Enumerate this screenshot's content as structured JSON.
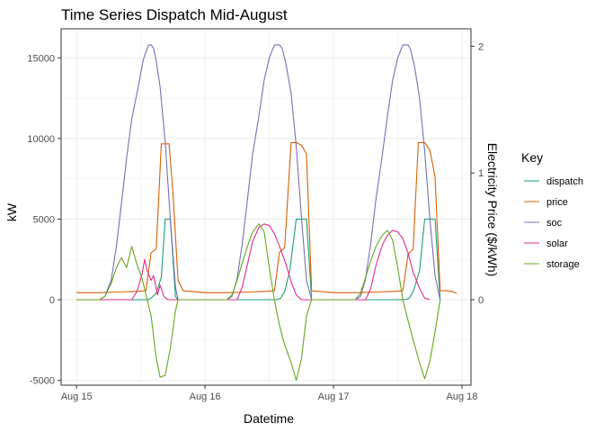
{
  "chart_data": {
    "type": "line",
    "title": "Time Series Dispatch Mid-August",
    "xlabel": "Datetime",
    "ylabel": "kW",
    "y2label": "Electricity Price ($/kWh)",
    "xlim": [
      -0.12,
      3.07
    ],
    "ylim": [
      -5300,
      16800
    ],
    "y2lim": [
      -0.675,
      2.1375
    ],
    "y2_scale": "price = kW / 8000",
    "grid": true,
    "legend_placement": "right",
    "legend_title": "Key",
    "x_ticks": [
      {
        "value": 0,
        "label": "Aug 15"
      },
      {
        "value": 1,
        "label": "Aug 16"
      },
      {
        "value": 2,
        "label": "Aug 17"
      },
      {
        "value": 3,
        "label": "Aug 18"
      }
    ],
    "y_ticks": [
      {
        "value": -5000,
        "label": "-5000"
      },
      {
        "value": 0,
        "label": "0"
      },
      {
        "value": 5000,
        "label": "5000"
      },
      {
        "value": 10000,
        "label": "10000"
      },
      {
        "value": 15000,
        "label": "15000"
      }
    ],
    "y2_ticks": [
      {
        "value": 0,
        "label": "0"
      },
      {
        "value": 1,
        "label": "1"
      },
      {
        "value": 2,
        "label": "2"
      }
    ],
    "series": [
      {
        "name": "dispatch",
        "color": "#1b9e77",
        "axis": "left",
        "x": [
          0,
          0.56,
          0.58,
          0.62,
          0.66,
          0.69,
          0.73,
          0.77,
          0.79,
          1.56,
          1.59,
          1.62,
          1.66,
          1.71,
          1.75,
          1.79,
          1.83,
          2.56,
          2.59,
          2.62,
          2.67,
          2.71,
          2.75,
          2.79,
          2.83
        ],
        "values": [
          0,
          0,
          100,
          400,
          1400,
          5000,
          5000,
          200,
          0,
          0,
          100,
          500,
          1800,
          5000,
          5000,
          5000,
          0,
          0,
          100,
          500,
          1800,
          5000,
          5000,
          5000,
          0
        ]
      },
      {
        "name": "price",
        "color": "#d95f02",
        "axis": "right",
        "x": [
          0,
          0.17,
          0.33,
          0.46,
          0.54,
          0.58,
          0.62,
          0.66,
          0.68,
          0.72,
          0.75,
          0.79,
          0.83,
          1.0,
          1.17,
          1.33,
          1.46,
          1.54,
          1.58,
          1.62,
          1.67,
          1.71,
          1.75,
          1.79,
          1.83,
          2.0,
          2.17,
          2.33,
          2.46,
          2.54,
          2.58,
          2.62,
          2.66,
          2.71,
          2.75,
          2.79,
          2.83,
          2.88,
          2.92,
          2.96
        ],
        "values": [
          0.055,
          0.055,
          0.06,
          0.065,
          0.07,
          0.37,
          0.4,
          1.23,
          1.23,
          1.23,
          0.85,
          0.15,
          0.07,
          0.055,
          0.055,
          0.06,
          0.065,
          0.07,
          0.375,
          0.41,
          1.24,
          1.24,
          1.22,
          1.15,
          0.07,
          0.055,
          0.055,
          0.06,
          0.065,
          0.07,
          0.36,
          0.4,
          1.24,
          1.24,
          1.18,
          0.97,
          0.07,
          0.07,
          0.065,
          0.05
        ]
      },
      {
        "name": "soc",
        "color": "#7570b3",
        "axis": "left",
        "x": [
          0,
          0.18,
          0.22,
          0.27,
          0.31,
          0.35,
          0.39,
          0.43,
          0.48,
          0.52,
          0.56,
          0.58,
          0.6,
          0.62,
          0.65,
          0.69,
          0.73,
          0.77,
          0.79,
          1.17,
          1.21,
          1.25,
          1.29,
          1.33,
          1.37,
          1.42,
          1.46,
          1.5,
          1.54,
          1.58,
          1.6,
          1.63,
          1.67,
          1.71,
          1.75,
          1.79,
          1.83,
          2.17,
          2.21,
          2.25,
          2.29,
          2.33,
          2.38,
          2.42,
          2.46,
          2.5,
          2.54,
          2.56,
          2.58,
          2.6,
          2.63,
          2.67,
          2.71,
          2.75,
          2.79,
          2.83
        ],
        "values": [
          0,
          0,
          200,
          1200,
          3300,
          6000,
          8800,
          11200,
          13200,
          14900,
          15800,
          15800,
          15600,
          14800,
          13200,
          9800,
          5000,
          800,
          0,
          0,
          200,
          1300,
          3500,
          6200,
          9000,
          11400,
          13600,
          15000,
          15800,
          15800,
          15600,
          14600,
          12800,
          9500,
          5200,
          1200,
          0,
          0,
          200,
          1300,
          3500,
          6200,
          9000,
          11400,
          13600,
          15000,
          15800,
          15800,
          15800,
          15500,
          14500,
          12500,
          9200,
          5000,
          1500,
          0
        ]
      },
      {
        "name": "solar",
        "color": "#e7298a",
        "axis": "left",
        "x": [
          0,
          0.43,
          0.47,
          0.51,
          0.53,
          0.55,
          0.58,
          0.6,
          0.63,
          0.65,
          0.68,
          0.71,
          0.75,
          1.25,
          1.29,
          1.33,
          1.37,
          1.42,
          1.46,
          1.5,
          1.54,
          1.58,
          1.63,
          1.67,
          1.71,
          1.75,
          2.25,
          2.29,
          2.33,
          2.38,
          2.42,
          2.46,
          2.5,
          2.54,
          2.58,
          2.62,
          2.67,
          2.71,
          2.75
        ],
        "values": [
          0,
          0,
          500,
          1600,
          2500,
          1800,
          1200,
          1500,
          300,
          900,
          200,
          0,
          0,
          0,
          800,
          2200,
          3600,
          4500,
          4700,
          4600,
          4100,
          3300,
          2200,
          1100,
          300,
          0,
          0,
          700,
          2100,
          3400,
          4000,
          4300,
          4200,
          3800,
          2900,
          1700,
          700,
          100,
          0
        ]
      },
      {
        "name": "storage",
        "color": "#66a61e",
        "axis": "left",
        "x": [
          0,
          0.18,
          0.22,
          0.27,
          0.31,
          0.35,
          0.39,
          0.43,
          0.47,
          0.51,
          0.55,
          0.58,
          0.62,
          0.65,
          0.69,
          0.73,
          0.77,
          0.79,
          1.17,
          1.21,
          1.25,
          1.29,
          1.33,
          1.37,
          1.42,
          1.46,
          1.5,
          1.54,
          1.58,
          1.62,
          1.67,
          1.71,
          1.75,
          1.79,
          1.83,
          2.17,
          2.21,
          2.25,
          2.29,
          2.33,
          2.38,
          2.42,
          2.46,
          2.5,
          2.54,
          2.58,
          2.62,
          2.67,
          2.71,
          2.75,
          2.79,
          2.83
        ],
        "values": [
          0,
          0,
          200,
          1000,
          2000,
          2600,
          2000,
          3300,
          2200,
          1300,
          0,
          -1000,
          -3600,
          -4800,
          -4700,
          -3000,
          -700,
          0,
          0,
          300,
          1200,
          2300,
          3300,
          4200,
          4700,
          4200,
          2000,
          0,
          -1600,
          -2800,
          -3900,
          -5000,
          -3700,
          -1000,
          0,
          0,
          400,
          1400,
          2400,
          3300,
          4000,
          4300,
          3700,
          2000,
          0,
          -1300,
          -2500,
          -3900,
          -4900,
          -3800,
          -2000,
          0
        ]
      }
    ]
  }
}
